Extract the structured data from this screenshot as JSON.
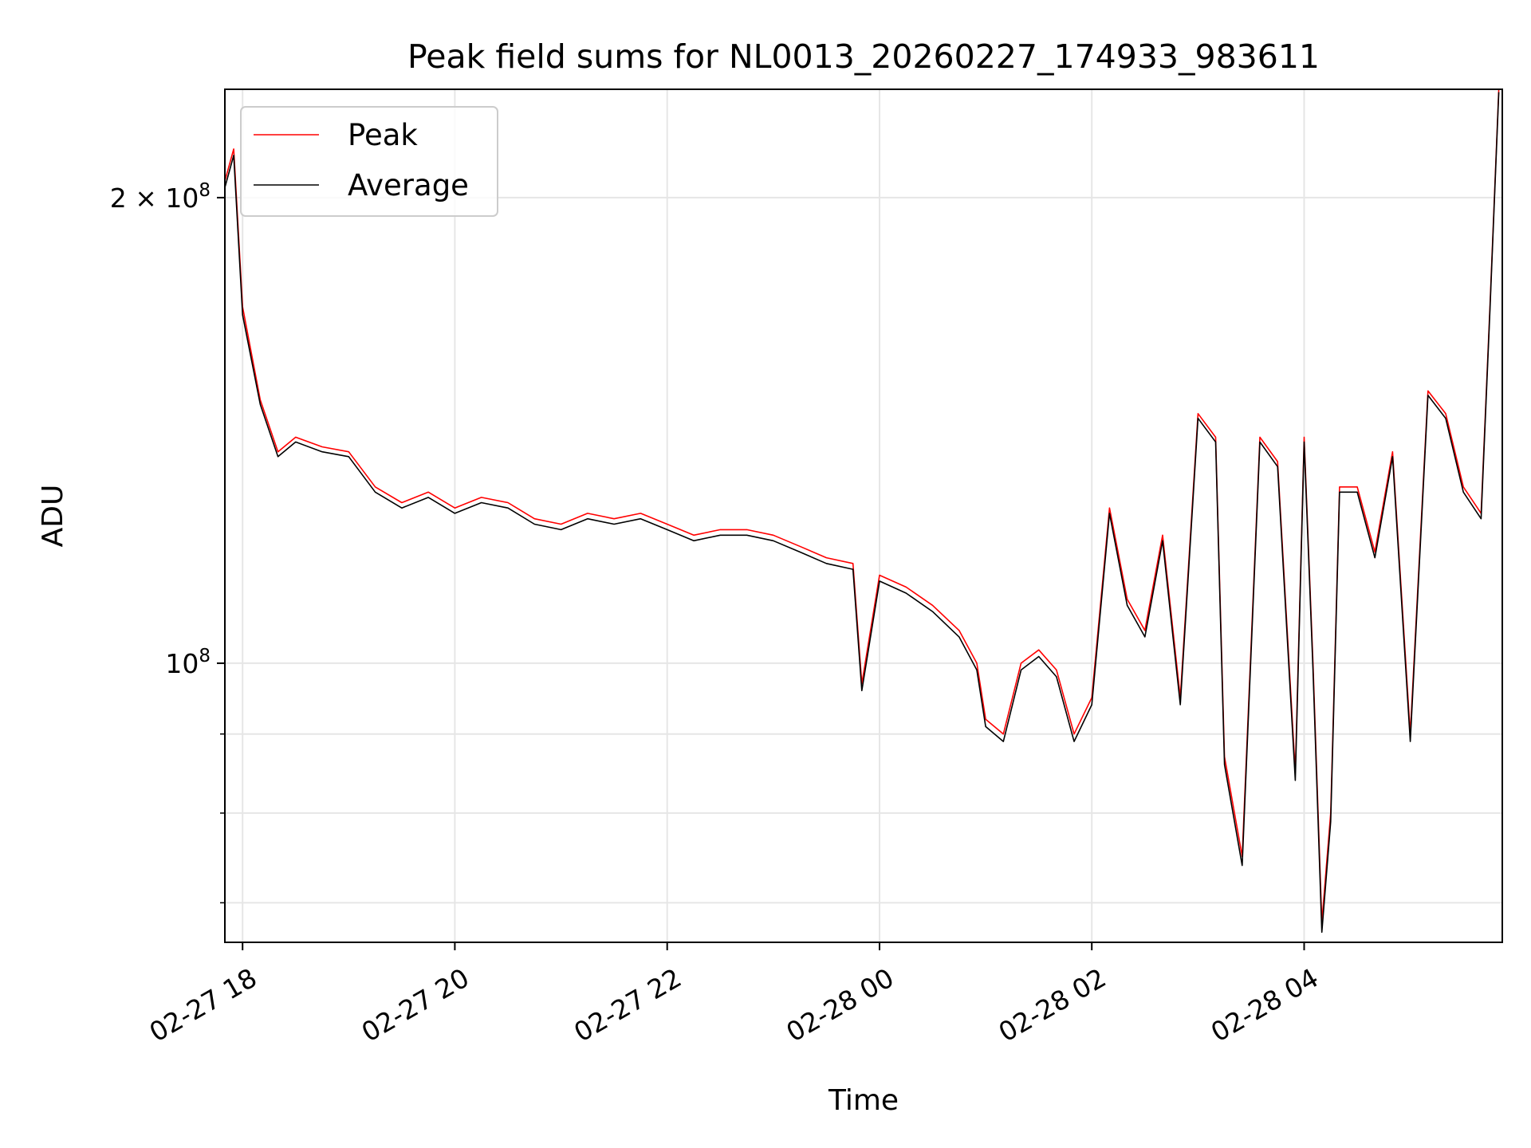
{
  "chart_data": {
    "type": "line",
    "title": "Peak field sums for NL0013_20260227_174933_983611",
    "xlabel": "Time",
    "ylabel": "ADU",
    "x_type": "datetime",
    "xlim": [
      "2026-02-27 17:50",
      "2026-02-28 05:52"
    ],
    "ylim": [
      66000000,
      235000000
    ],
    "yscale": "log",
    "grid": true,
    "legend_position": "top-left",
    "x_ticks": [
      {
        "value": "2026-02-27 18:00",
        "label": "02-27 18"
      },
      {
        "value": "2026-02-27 20:00",
        "label": "02-27 20"
      },
      {
        "value": "2026-02-27 22:00",
        "label": "02-27 22"
      },
      {
        "value": "2026-02-28 00:00",
        "label": "02-28 00"
      },
      {
        "value": "2026-02-28 02:00",
        "label": "02-28 02"
      },
      {
        "value": "2026-02-28 04:00",
        "label": "02-28 04"
      }
    ],
    "y_major_ticks": [
      {
        "value": 100000000,
        "base": "10",
        "exp": "8",
        "mantissa": ""
      },
      {
        "value": 200000000,
        "base": "10",
        "exp": "8",
        "mantissa": "2 × "
      }
    ],
    "y_minor_ticks": [
      70000000,
      80000000,
      90000000
    ],
    "series": [
      {
        "name": "Peak",
        "color": "#ff0000",
        "x": [
          "2026-02-27 17:50",
          "2026-02-27 17:55",
          "2026-02-27 18:00",
          "2026-02-27 18:10",
          "2026-02-27 18:20",
          "2026-02-27 18:30",
          "2026-02-27 18:45",
          "2026-02-27 19:00",
          "2026-02-27 19:15",
          "2026-02-27 19:30",
          "2026-02-27 19:45",
          "2026-02-27 20:00",
          "2026-02-27 20:15",
          "2026-02-27 20:30",
          "2026-02-27 20:45",
          "2026-02-27 21:00",
          "2026-02-27 21:15",
          "2026-02-27 21:30",
          "2026-02-27 21:45",
          "2026-02-27 22:00",
          "2026-02-27 22:15",
          "2026-02-27 22:30",
          "2026-02-27 22:45",
          "2026-02-27 23:00",
          "2026-02-27 23:15",
          "2026-02-27 23:30",
          "2026-02-27 23:45",
          "2026-02-27 23:50",
          "2026-02-28 00:00",
          "2026-02-28 00:15",
          "2026-02-28 00:30",
          "2026-02-28 00:45",
          "2026-02-28 00:55",
          "2026-02-28 01:00",
          "2026-02-28 01:10",
          "2026-02-28 01:20",
          "2026-02-28 01:30",
          "2026-02-28 01:40",
          "2026-02-28 01:50",
          "2026-02-28 02:00",
          "2026-02-28 02:10",
          "2026-02-28 02:20",
          "2026-02-28 02:30",
          "2026-02-28 02:40",
          "2026-02-28 02:50",
          "2026-02-28 03:00",
          "2026-02-28 03:10",
          "2026-02-28 03:15",
          "2026-02-28 03:25",
          "2026-02-28 03:35",
          "2026-02-28 03:45",
          "2026-02-28 03:55",
          "2026-02-28 04:00",
          "2026-02-28 04:05",
          "2026-02-28 04:10",
          "2026-02-28 04:15",
          "2026-02-28 04:20",
          "2026-02-28 04:30",
          "2026-02-28 04:40",
          "2026-02-28 04:50",
          "2026-02-28 05:00",
          "2026-02-28 05:10",
          "2026-02-28 05:20",
          "2026-02-28 05:30",
          "2026-02-28 05:40",
          "2026-02-28 05:45",
          "2026-02-28 05:50"
        ],
        "values": [
          205000000,
          215000000,
          170000000,
          148000000,
          137000000,
          140000000,
          138000000,
          137000000,
          130000000,
          127000000,
          129000000,
          126000000,
          128000000,
          127000000,
          124000000,
          123000000,
          125000000,
          124000000,
          125000000,
          123000000,
          121000000,
          122000000,
          122000000,
          121000000,
          119000000,
          117000000,
          116000000,
          97000000,
          114000000,
          112000000,
          109000000,
          105000000,
          100000000,
          92000000,
          90000000,
          100000000,
          102000000,
          99000000,
          90000000,
          95000000,
          126000000,
          110000000,
          105000000,
          121000000,
          95000000,
          145000000,
          140000000,
          87000000,
          75000000,
          140000000,
          135000000,
          85000000,
          140000000,
          100000000,
          68000000,
          80000000,
          130000000,
          130000000,
          118000000,
          137000000,
          90000000,
          150000000,
          145000000,
          130000000,
          125000000,
          170000000,
          235000000
        ]
      },
      {
        "name": "Average",
        "color": "#000000",
        "x": [
          "2026-02-27 17:50",
          "2026-02-27 17:55",
          "2026-02-27 18:00",
          "2026-02-27 18:10",
          "2026-02-27 18:20",
          "2026-02-27 18:30",
          "2026-02-27 18:45",
          "2026-02-27 19:00",
          "2026-02-27 19:15",
          "2026-02-27 19:30",
          "2026-02-27 19:45",
          "2026-02-27 20:00",
          "2026-02-27 20:15",
          "2026-02-27 20:30",
          "2026-02-27 20:45",
          "2026-02-27 21:00",
          "2026-02-27 21:15",
          "2026-02-27 21:30",
          "2026-02-27 21:45",
          "2026-02-27 22:00",
          "2026-02-27 22:15",
          "2026-02-27 22:30",
          "2026-02-27 22:45",
          "2026-02-27 23:00",
          "2026-02-27 23:15",
          "2026-02-27 23:30",
          "2026-02-27 23:45",
          "2026-02-27 23:50",
          "2026-02-28 00:00",
          "2026-02-28 00:15",
          "2026-02-28 00:30",
          "2026-02-28 00:45",
          "2026-02-28 00:55",
          "2026-02-28 01:00",
          "2026-02-28 01:10",
          "2026-02-28 01:20",
          "2026-02-28 01:30",
          "2026-02-28 01:40",
          "2026-02-28 01:50",
          "2026-02-28 02:00",
          "2026-02-28 02:10",
          "2026-02-28 02:20",
          "2026-02-28 02:30",
          "2026-02-28 02:40",
          "2026-02-28 02:50",
          "2026-02-28 03:00",
          "2026-02-28 03:10",
          "2026-02-28 03:15",
          "2026-02-28 03:25",
          "2026-02-28 03:35",
          "2026-02-28 03:45",
          "2026-02-28 03:55",
          "2026-02-28 04:00",
          "2026-02-28 04:05",
          "2026-02-28 04:10",
          "2026-02-28 04:15",
          "2026-02-28 04:20",
          "2026-02-28 04:30",
          "2026-02-28 04:40",
          "2026-02-28 04:50",
          "2026-02-28 05:00",
          "2026-02-28 05:10",
          "2026-02-28 05:20",
          "2026-02-28 05:30",
          "2026-02-28 05:40",
          "2026-02-28 05:45",
          "2026-02-28 05:50"
        ],
        "values": [
          203000000,
          213000000,
          168000000,
          147000000,
          136000000,
          139000000,
          137000000,
          136000000,
          129000000,
          126000000,
          128000000,
          125000000,
          127000000,
          126000000,
          123000000,
          122000000,
          124000000,
          123000000,
          124000000,
          122000000,
          120000000,
          121000000,
          121000000,
          120000000,
          118000000,
          116000000,
          115000000,
          96000000,
          113000000,
          111000000,
          108000000,
          104000000,
          99000000,
          91000000,
          89000000,
          99000000,
          101000000,
          98000000,
          89000000,
          94000000,
          125000000,
          109000000,
          104000000,
          120000000,
          94000000,
          144000000,
          139000000,
          86000000,
          74000000,
          139000000,
          134000000,
          84000000,
          139000000,
          99000000,
          67000000,
          79000000,
          129000000,
          129000000,
          117000000,
          136000000,
          89000000,
          149000000,
          144000000,
          129000000,
          124000000,
          169000000,
          234000000
        ]
      }
    ]
  }
}
